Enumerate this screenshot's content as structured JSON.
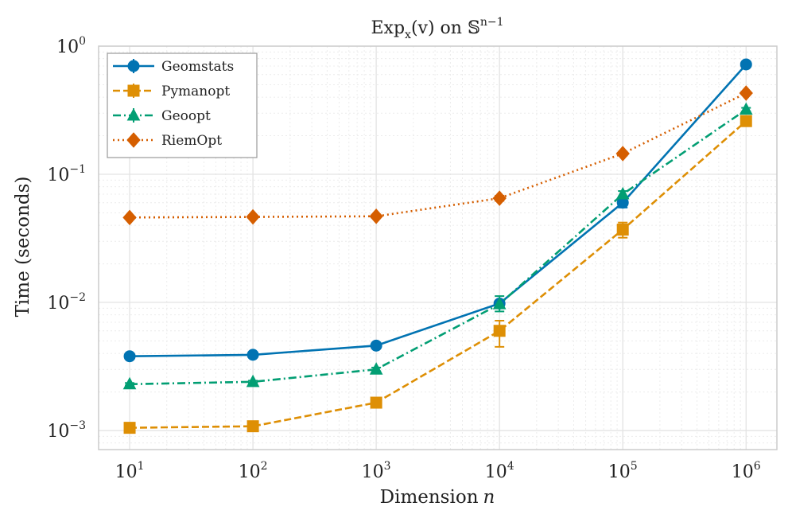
{
  "chart_data": {
    "type": "line",
    "title": "Exp",
    "title_sub": "x",
    "title_arg": "(v) on 𝕊",
    "title_sup": "n−1",
    "xlabel": "Dimension",
    "xlabel_var": "n",
    "ylabel": "Time (seconds)",
    "xscale": "log",
    "yscale": "log",
    "x": [
      10,
      100,
      1000,
      10000,
      100000,
      1000000
    ],
    "x_exponents": [
      1,
      2,
      3,
      4,
      5,
      6
    ],
    "xlim": [
      5.6,
      1778000
    ],
    "ylim": [
      0.00071,
      1.0
    ],
    "x_tick_labels": [
      {
        "base": "10",
        "exp": "1"
      },
      {
        "base": "10",
        "exp": "2"
      },
      {
        "base": "10",
        "exp": "3"
      },
      {
        "base": "10",
        "exp": "4"
      },
      {
        "base": "10",
        "exp": "5"
      },
      {
        "base": "10",
        "exp": "6"
      }
    ],
    "y_tick_labels": [
      {
        "base": "10",
        "exp": "0",
        "value": 1.0
      },
      {
        "base": "10",
        "exp": "−1",
        "value": 0.1
      },
      {
        "base": "10",
        "exp": "−2",
        "value": 0.01
      },
      {
        "base": "10",
        "exp": "−3",
        "value": 0.001
      }
    ],
    "grid": true,
    "legend_position": "top-left",
    "series": [
      {
        "name": "Geomstats",
        "color": "#0173b2",
        "marker": "circle",
        "dash": "solid",
        "values": [
          0.0038,
          0.0039,
          0.0046,
          0.0098,
          0.06,
          0.72
        ],
        "err_low": [
          0.0037,
          0.0038,
          0.0045,
          0.0093,
          0.055,
          0.71
        ],
        "err_high": [
          0.0039,
          0.004,
          0.0047,
          0.0103,
          0.065,
          0.73
        ]
      },
      {
        "name": "Pymanopt",
        "color": "#de8f05",
        "marker": "square",
        "dash": "dashed",
        "values": [
          0.00105,
          0.00108,
          0.00165,
          0.006,
          0.037,
          0.26
        ],
        "err_low": [
          0.00102,
          0.00105,
          0.0016,
          0.0045,
          0.032,
          0.25
        ],
        "err_high": [
          0.00108,
          0.00111,
          0.0017,
          0.0072,
          0.042,
          0.27
        ]
      },
      {
        "name": "Geoopt",
        "color": "#029e73",
        "marker": "triangle",
        "dash": "dashdot",
        "values": [
          0.0023,
          0.0024,
          0.003,
          0.0097,
          0.07,
          0.32
        ],
        "err_low": [
          0.00225,
          0.00235,
          0.0029,
          0.0085,
          0.066,
          0.31
        ],
        "err_high": [
          0.00235,
          0.00245,
          0.0031,
          0.0112,
          0.074,
          0.33
        ]
      },
      {
        "name": "RiemOpt",
        "color": "#d55e00",
        "marker": "diamond",
        "dash": "dotted",
        "values": [
          0.046,
          0.0465,
          0.047,
          0.065,
          0.145,
          0.43
        ],
        "err_low": [
          0.0455,
          0.046,
          0.0465,
          0.062,
          0.14,
          0.42
        ],
        "err_high": [
          0.0465,
          0.047,
          0.0475,
          0.068,
          0.15,
          0.44
        ]
      }
    ]
  }
}
